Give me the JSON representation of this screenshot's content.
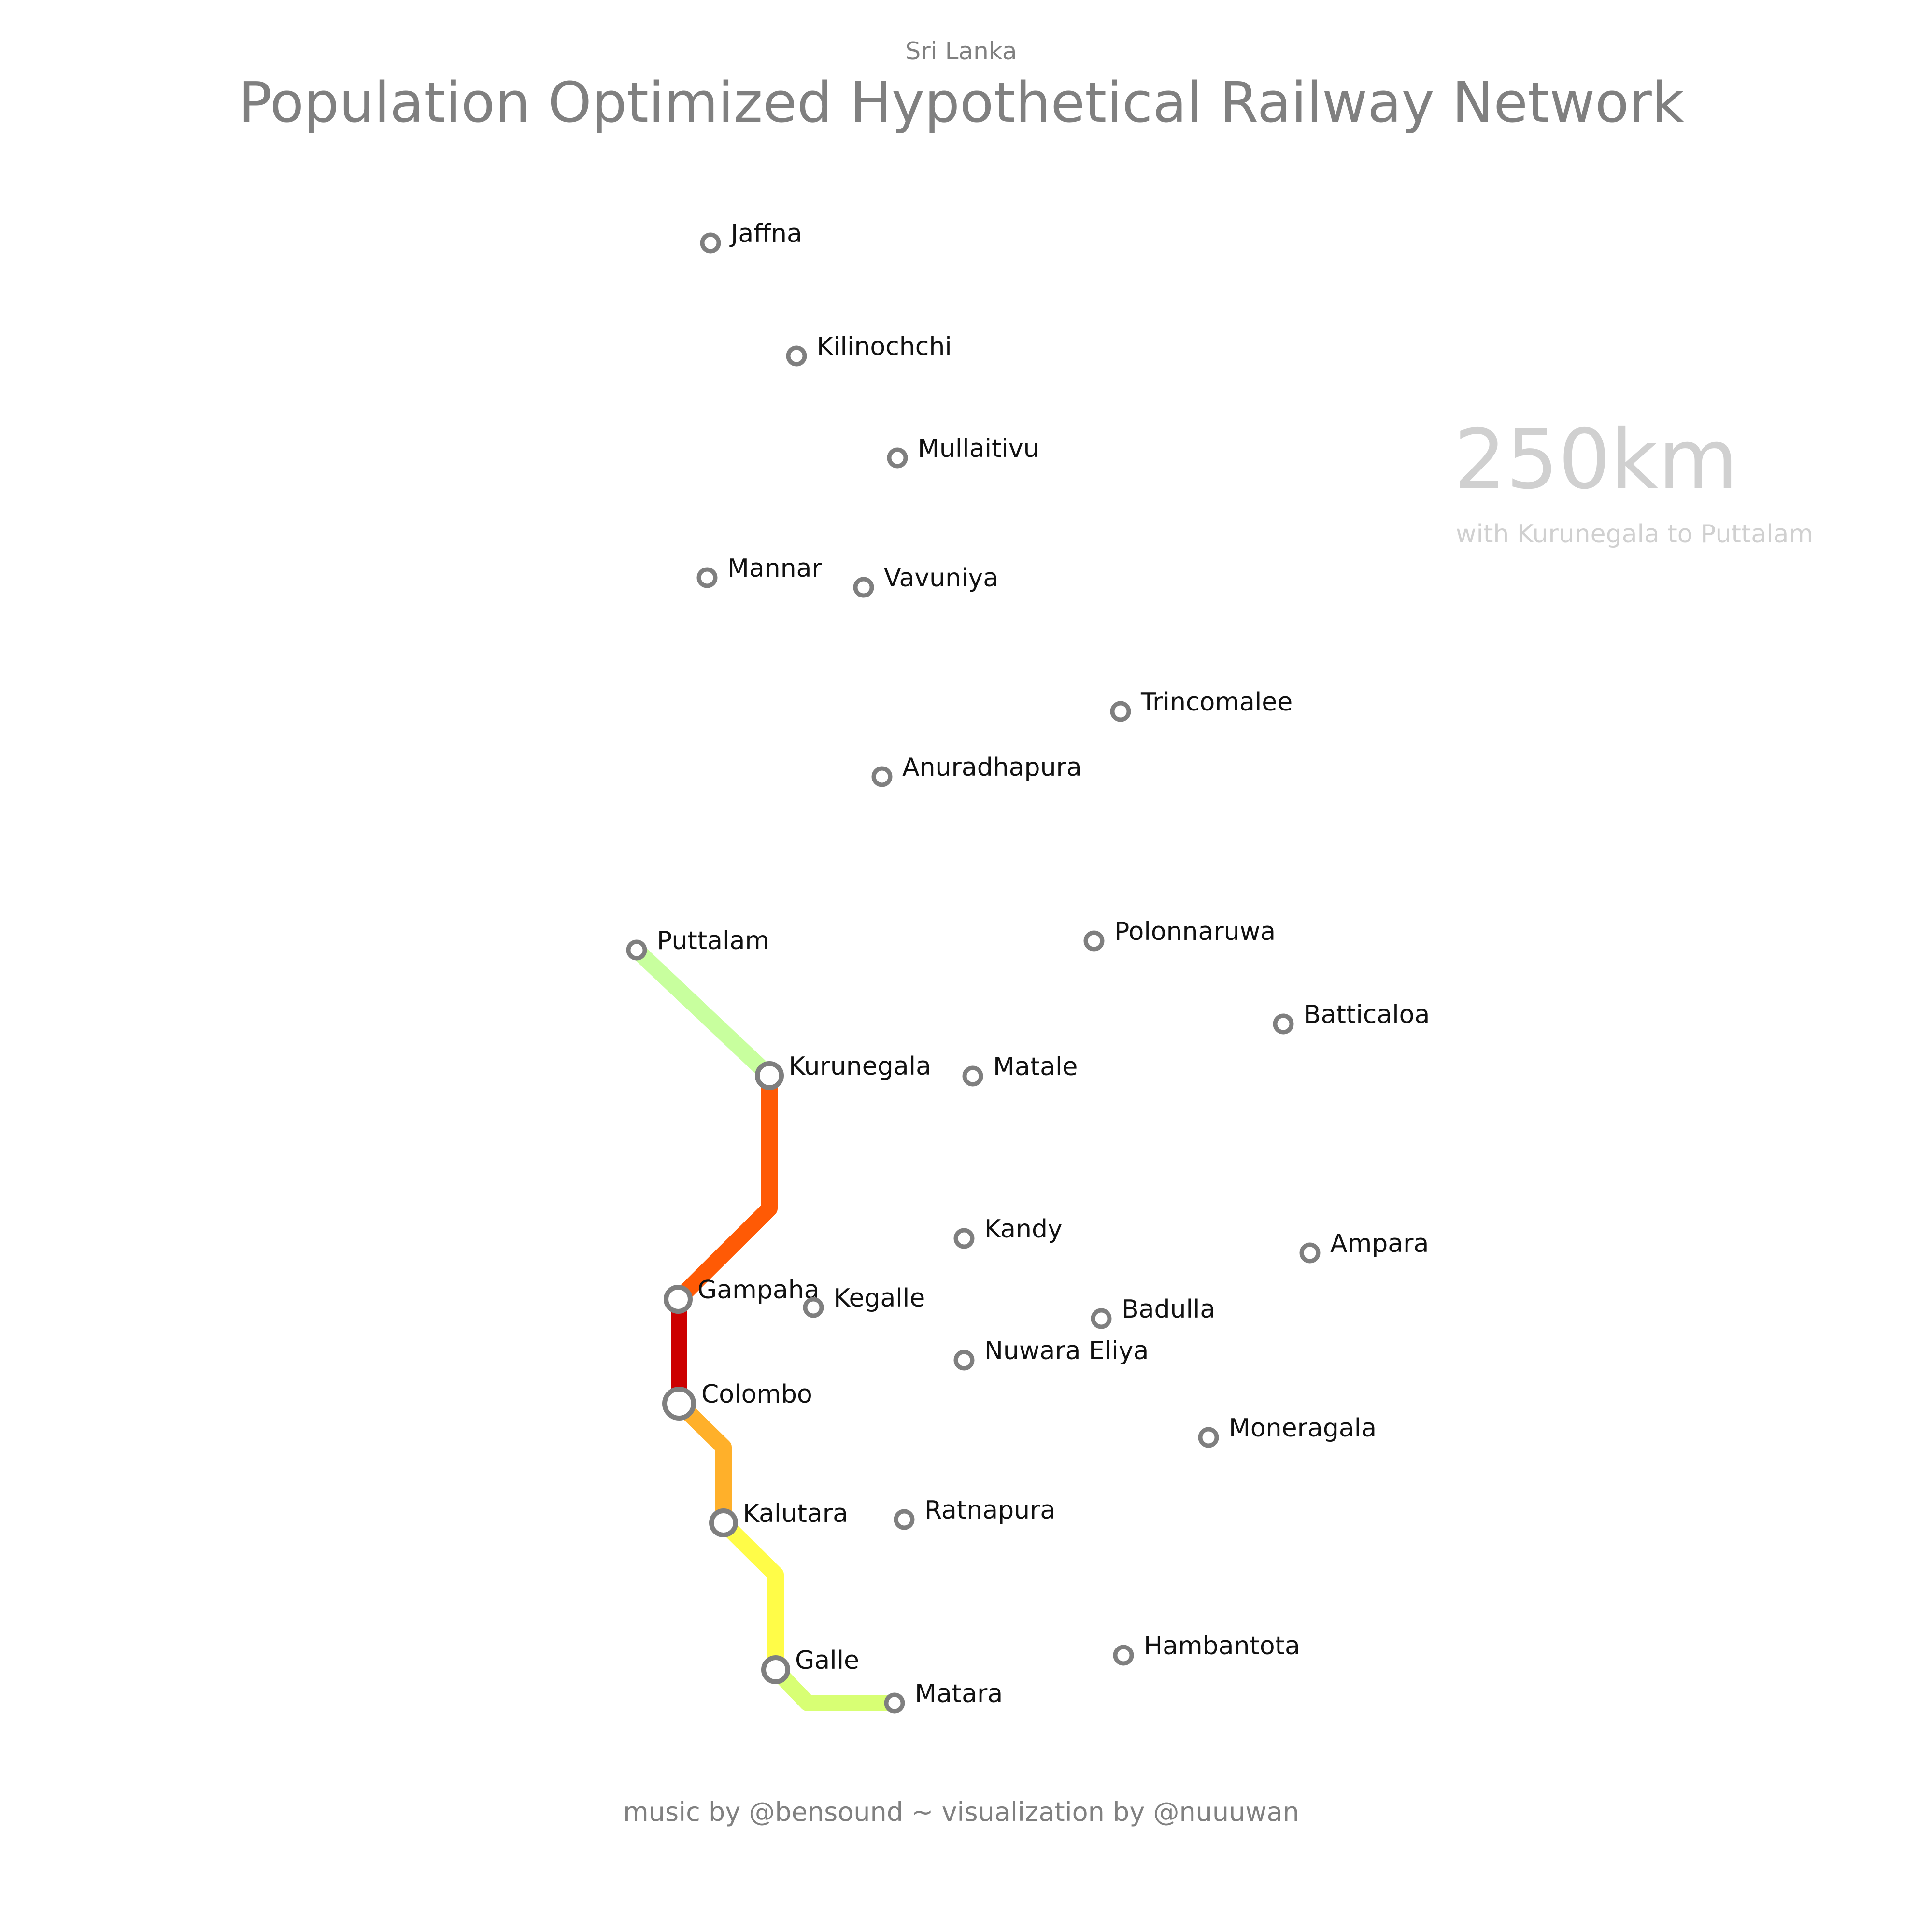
{
  "header": {
    "country": "Sri Lanka",
    "title": "Population Optimized Hypothetical Railway Network"
  },
  "summary": {
    "distance": "250km",
    "note": "with Kurunegala to Puttalam"
  },
  "footer": {
    "credit": "music by @bensound ~ visualization by @nuuuwan"
  },
  "colors": {
    "station_stroke": "#7f7f7f",
    "label": "#111111",
    "title": "#808080",
    "faint": "#d0d0d0"
  },
  "cities": [
    {
      "id": "jaffna",
      "name": "Jaffna",
      "hub": false
    },
    {
      "id": "kilinochchi",
      "name": "Kilinochchi",
      "hub": false
    },
    {
      "id": "mullaitivu",
      "name": "Mullaitivu",
      "hub": false
    },
    {
      "id": "mannar",
      "name": "Mannar",
      "hub": false
    },
    {
      "id": "vavuniya",
      "name": "Vavuniya",
      "hub": false
    },
    {
      "id": "trincomalee",
      "name": "Trincomalee",
      "hub": false
    },
    {
      "id": "anuradhapura",
      "name": "Anuradhapura",
      "hub": false
    },
    {
      "id": "puttalam",
      "name": "Puttalam",
      "hub": false
    },
    {
      "id": "polonnaruwa",
      "name": "Polonnaruwa",
      "hub": false
    },
    {
      "id": "batticaloa",
      "name": "Batticaloa",
      "hub": false
    },
    {
      "id": "kurunegala",
      "name": "Kurunegala",
      "hub": true
    },
    {
      "id": "matale",
      "name": "Matale",
      "hub": false
    },
    {
      "id": "kandy",
      "name": "Kandy",
      "hub": false
    },
    {
      "id": "ampara",
      "name": "Ampara",
      "hub": false
    },
    {
      "id": "gampaha",
      "name": "Gampaha",
      "hub": true
    },
    {
      "id": "kegalle",
      "name": "Kegalle",
      "hub": false
    },
    {
      "id": "badulla",
      "name": "Badulla",
      "hub": false
    },
    {
      "id": "nuwara-eliya",
      "name": "Nuwara Eliya",
      "hub": false
    },
    {
      "id": "colombo",
      "name": "Colombo",
      "hub": true
    },
    {
      "id": "moneragala",
      "name": "Moneragala",
      "hub": false
    },
    {
      "id": "kalutara",
      "name": "Kalutara",
      "hub": true
    },
    {
      "id": "ratnapura",
      "name": "Ratnapura",
      "hub": false
    },
    {
      "id": "hambantota",
      "name": "Hambantota",
      "hub": false
    },
    {
      "id": "galle",
      "name": "Galle",
      "hub": true
    },
    {
      "id": "matara",
      "name": "Matara",
      "hub": false
    }
  ],
  "rail_segments": [
    {
      "id": "kurunegala-puttalam",
      "from": "Kurunegala",
      "to": "Puttalam",
      "color": "#c8ff9e"
    },
    {
      "id": "gampaha-kurunegala",
      "from": "Gampaha",
      "to": "Kurunegala",
      "color": "#ff5a05"
    },
    {
      "id": "colombo-gampaha",
      "from": "Colombo",
      "to": "Gampaha",
      "color": "#cc0000"
    },
    {
      "id": "colombo-kalutara",
      "from": "Colombo",
      "to": "Kalutara",
      "color": "#ffb02a"
    },
    {
      "id": "kalutara-galle",
      "from": "Kalutara",
      "to": "Galle",
      "color": "#fffc48"
    },
    {
      "id": "galle-matara",
      "from": "Galle",
      "to": "Matara",
      "color": "#d8ff74"
    }
  ]
}
